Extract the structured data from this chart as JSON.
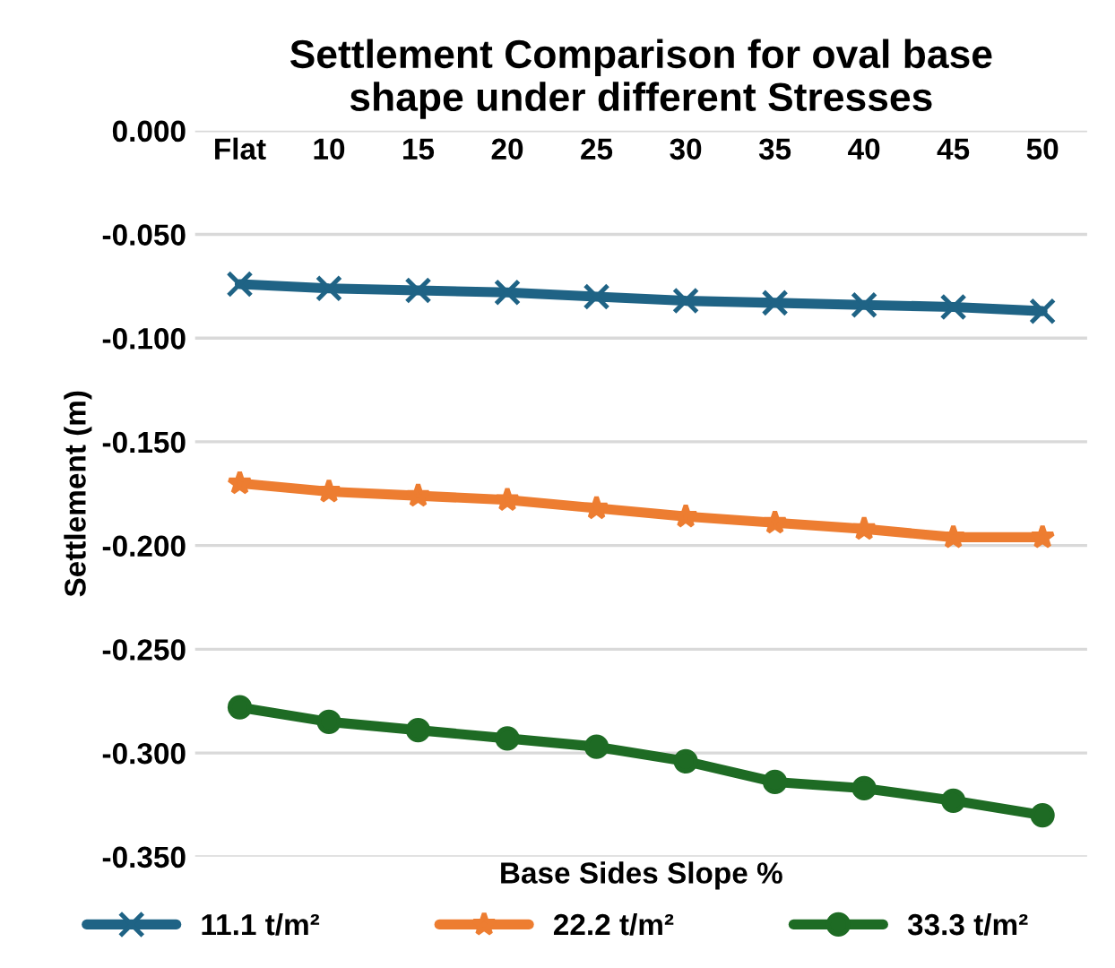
{
  "chart_data": {
    "type": "line",
    "title": "Settlement Comparison for oval base\nshape under different Stresses",
    "xlabel": "Base Sides Slope %",
    "ylabel": "Settlement (m)",
    "categories": [
      "Flat",
      "10",
      "15",
      "20",
      "25",
      "30",
      "35",
      "40",
      "45",
      "50"
    ],
    "series": [
      {
        "name": "11.1 t/m²",
        "color": "#1f6385",
        "marker": "cross",
        "values": [
          -0.074,
          -0.076,
          -0.077,
          -0.078,
          -0.08,
          -0.082,
          -0.083,
          -0.084,
          -0.085,
          -0.087
        ]
      },
      {
        "name": "22.2 t/m²",
        "color": "#ed7d31",
        "marker": "star",
        "values": [
          -0.17,
          -0.174,
          -0.176,
          -0.178,
          -0.182,
          -0.186,
          -0.189,
          -0.192,
          -0.196,
          -0.196
        ]
      },
      {
        "name": "33.3 t/m²",
        "color": "#1e6b24",
        "marker": "circle",
        "values": [
          -0.278,
          -0.285,
          -0.289,
          -0.293,
          -0.297,
          -0.304,
          -0.314,
          -0.317,
          -0.323,
          -0.33
        ]
      }
    ],
    "ylim": [
      -0.35,
      0.0
    ],
    "yticks": [
      {
        "value": 0.0,
        "label": "0.000"
      },
      {
        "value": -0.05,
        "label": "-0.050"
      },
      {
        "value": -0.1,
        "label": "-0.100"
      },
      {
        "value": -0.15,
        "label": "-0.150"
      },
      {
        "value": -0.2,
        "label": "-0.200"
      },
      {
        "value": -0.25,
        "label": "-0.250"
      },
      {
        "value": -0.3,
        "label": "-0.300"
      },
      {
        "value": -0.35,
        "label": "-0.350"
      }
    ],
    "grid": "y",
    "legend": "bottom",
    "line_style": "solid"
  }
}
